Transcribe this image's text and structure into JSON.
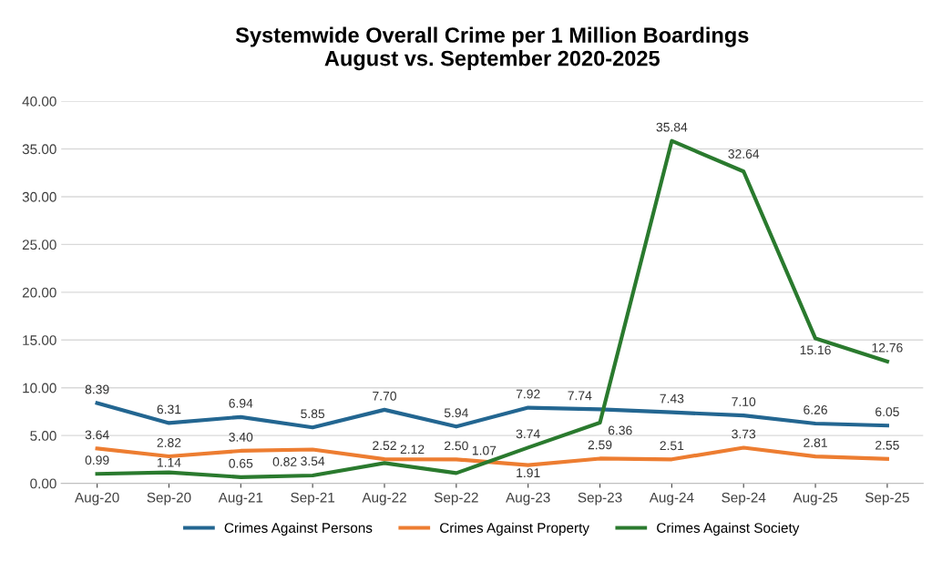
{
  "chart_data": {
    "type": "line",
    "title": "Systemwide Overall Crime per 1 Million Boardings\nAugust vs. September 2020-2025",
    "categories": [
      "Aug-20",
      "Sep-20",
      "Aug-21",
      "Sep-21",
      "Aug-22",
      "Sep-22",
      "Aug-23",
      "Sep-23",
      "Aug-24",
      "Sep-24",
      "Aug-25",
      "Sep-25"
    ],
    "series": [
      {
        "name": "Crimes Against Persons",
        "color": "#236691",
        "values": [
          8.39,
          6.31,
          6.94,
          5.85,
          7.7,
          5.94,
          7.92,
          7.74,
          7.43,
          7.1,
          6.26,
          6.05
        ],
        "value_labels": [
          "8.39",
          "6.31",
          "6.94",
          "5.85",
          "7.70",
          "5.94",
          "7.92",
          "7.74",
          "7.43",
          "7.10",
          "6.26",
          "6.05"
        ]
      },
      {
        "name": "Crimes Against Property",
        "color": "#ed7d31",
        "values": [
          3.64,
          2.82,
          3.4,
          3.54,
          2.52,
          2.5,
          1.91,
          2.59,
          2.51,
          3.73,
          2.81,
          2.55
        ],
        "value_labels": [
          "3.64",
          "2.82",
          "3.40",
          "3.54",
          "2.52",
          "2.50",
          "1.91",
          "2.59",
          "2.51",
          "3.73",
          "2.81",
          "2.55"
        ]
      },
      {
        "name": "Crimes Against Society",
        "color": "#2a7a2e",
        "values": [
          0.99,
          1.14,
          0.65,
          0.82,
          2.12,
          1.07,
          3.74,
          6.36,
          35.84,
          32.64,
          15.16,
          12.76
        ],
        "value_labels": [
          "0.99",
          "1.14",
          "0.65",
          "0.82",
          "2.12",
          "1.07",
          "3.74",
          "6.36",
          "35.84",
          "32.64",
          "15.16",
          "12.76"
        ]
      }
    ],
    "ylim": [
      0,
      40
    ],
    "yticks": [
      {
        "value": 0,
        "label": "0.00"
      },
      {
        "value": 5,
        "label": "5.00"
      },
      {
        "value": 10,
        "label": "10.00"
      },
      {
        "value": 15,
        "label": "15.00"
      },
      {
        "value": 20,
        "label": "20.00"
      },
      {
        "value": 25,
        "label": "25.00"
      },
      {
        "value": 30,
        "label": "30.00"
      },
      {
        "value": 35,
        "label": "35.00"
      },
      {
        "value": 40,
        "label": "40.00"
      }
    ],
    "grid": "y",
    "legend": "bottom",
    "marker": "none",
    "line_style": "solid"
  }
}
